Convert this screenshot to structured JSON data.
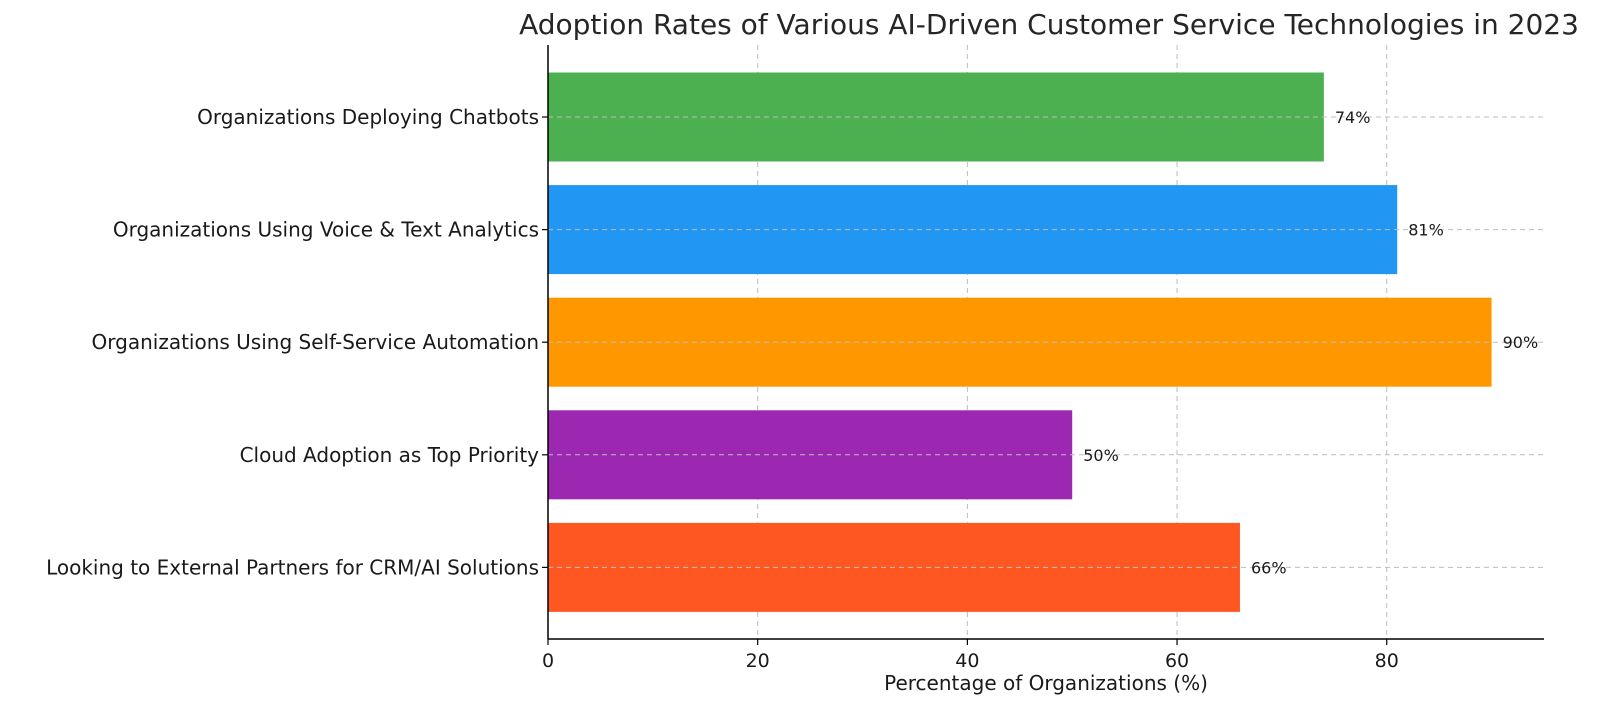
{
  "chart_data": {
    "type": "bar",
    "orientation": "horizontal",
    "title": "Adoption Rates of Various AI-Driven Customer Service Technologies in 2023",
    "xlabel": "Percentage of Organizations (%)",
    "ylabel": "",
    "xlim": [
      0,
      95
    ],
    "xticks": [
      0,
      20,
      40,
      60,
      80
    ],
    "xtick_labels": [
      "0",
      "20",
      "40",
      "60",
      "80"
    ],
    "grid": true,
    "categories": [
      "Organizations Deploying Chatbots",
      "Organizations Using Voice & Text Analytics",
      "Organizations Using Self-Service Automation",
      "Cloud Adoption as Top Priority",
      "Looking to External Partners for CRM/AI Solutions"
    ],
    "values": [
      74,
      81,
      90,
      50,
      66
    ],
    "value_labels": [
      "74%",
      "81%",
      "90%",
      "50%",
      "66%"
    ],
    "colors": [
      "#4caf50",
      "#2196f3",
      "#ff9800",
      "#9c27b0",
      "#ff5722"
    ]
  }
}
